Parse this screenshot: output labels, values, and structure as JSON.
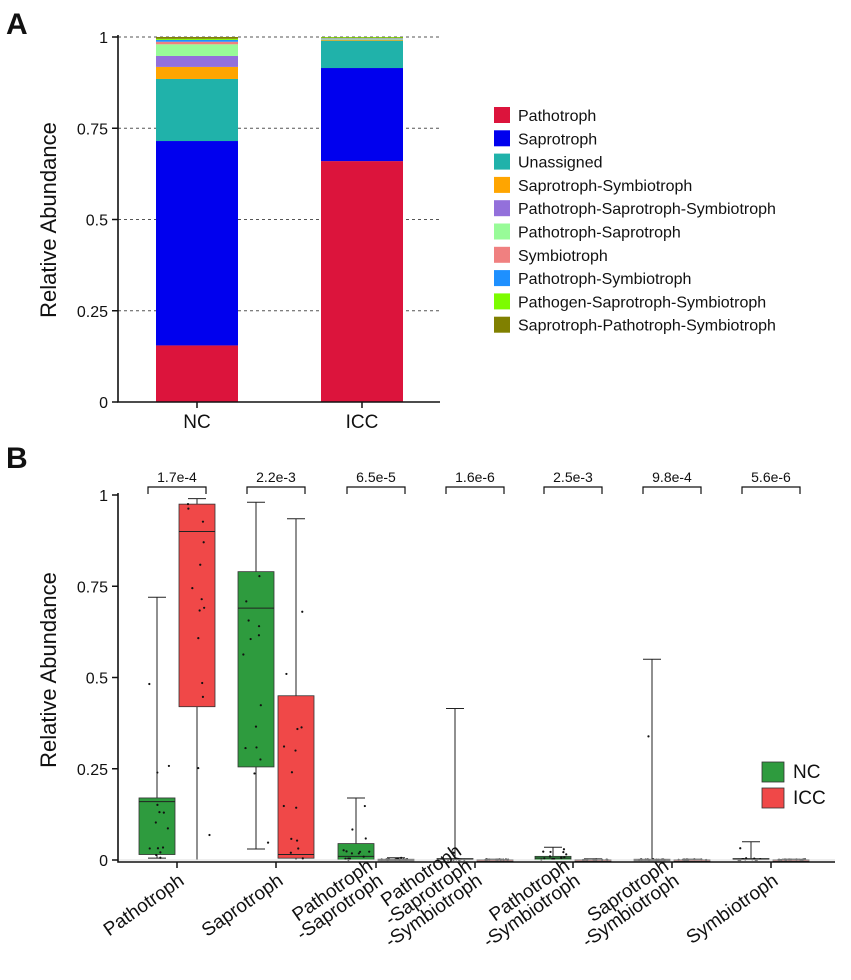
{
  "panels": {
    "a": "A",
    "b": "B"
  },
  "colors": {
    "Pathotroph": "#dc143c",
    "Saprotroph": "#0000ee",
    "Unassigned": "#20b2aa",
    "Saprotroph-Symbiotroph": "#ffa500",
    "Pathotroph-Saprotroph-Symbiotroph": "#9370db",
    "Pathotroph-Saprotroph": "#98fb98",
    "Symbiotroph": "#f08080",
    "Pathotroph-Symbiotroph": "#1e90ff",
    "Pathogen-Saprotroph-Symbiotroph": "#7cfc00",
    "Saprotroph-Pathotroph-Symbiotroph": "#808000",
    "NC": "#2e9b3e",
    "ICC": "#f04848"
  },
  "chart_data": [
    {
      "type": "bar",
      "stacked": true,
      "ylabel": "Relative Abundance",
      "ylim": [
        0,
        1
      ],
      "yticks": [
        "0",
        "0.25",
        "0.5",
        "0.75",
        "1"
      ],
      "grid": true,
      "legend_position": "right",
      "categories": [
        "NC",
        "ICC"
      ],
      "series": [
        {
          "name": "Pathotroph",
          "values": [
            0.155,
            0.66
          ]
        },
        {
          "name": "Saprotroph",
          "values": [
            0.56,
            0.255
          ]
        },
        {
          "name": "Unassigned",
          "values": [
            0.17,
            0.075
          ]
        },
        {
          "name": "Saprotroph-Symbiotroph",
          "values": [
            0.033,
            0.002
          ]
        },
        {
          "name": "Pathotroph-Saprotroph-Symbiotroph",
          "values": [
            0.03,
            0.001
          ]
        },
        {
          "name": "Pathotroph-Saprotroph",
          "values": [
            0.032,
            0.002
          ]
        },
        {
          "name": "Symbiotroph",
          "values": [
            0.007,
            0.001
          ]
        },
        {
          "name": "Pathotroph-Symbiotroph",
          "values": [
            0.005,
            0.001
          ]
        },
        {
          "name": "Pathogen-Saprotroph-Symbiotroph",
          "values": [
            0.003,
            0.002
          ]
        },
        {
          "name": "Saprotroph-Pathotroph-Symbiotroph",
          "values": [
            0.005,
            0.001
          ]
        }
      ]
    },
    {
      "type": "box",
      "ylabel": "Relative Abundance",
      "ylim": [
        0,
        1
      ],
      "yticks": [
        "0",
        "0.25",
        "0.5",
        "0.75",
        "1"
      ],
      "legend_position": "right",
      "legend": [
        "NC",
        "ICC"
      ],
      "categories": [
        "Pathotroph",
        "Saprotroph",
        "Pathotroph\n-Saprotroph",
        "Pathotroph\n-Saprotroph\n-Symbiotroph",
        "Pathotroph\n-Symbiotroph",
        "Saprotroph\n-Symbiotroph",
        "Symbiotroph"
      ],
      "pvalues": [
        "1.7e-4",
        "2.2e-3",
        "6.5e-5",
        "1.6e-6",
        "2.5e-3",
        "9.8e-4",
        "5.6e-6"
      ],
      "boxes": [
        {
          "NC": {
            "min": 0.005,
            "q1": 0.015,
            "median": 0.16,
            "q3": 0.17,
            "max": 0.72
          },
          "ICC": {
            "min": 0.0,
            "q1": 0.42,
            "median": 0.9,
            "q3": 0.975,
            "max": 0.99
          }
        },
        {
          "NC": {
            "min": 0.03,
            "q1": 0.255,
            "median": 0.69,
            "q3": 0.79,
            "max": 0.98
          },
          "ICC": {
            "min": 0.0,
            "q1": 0.005,
            "median": 0.015,
            "q3": 0.45,
            "max": 0.935
          }
        },
        {
          "NC": {
            "min": 0.0,
            "q1": 0.0,
            "median": 0.01,
            "q3": 0.045,
            "max": 0.17
          },
          "ICC": {
            "min": 0.0,
            "q1": 0.0,
            "median": 0.0,
            "q3": 0.002,
            "max": 0.006
          }
        },
        {
          "NC": {
            "min": 0.0,
            "q1": 0.0,
            "median": 0.002,
            "q3": 0.004,
            "max": 0.415
          },
          "ICC": {
            "min": 0.0,
            "q1": 0.0,
            "median": 0.0,
            "q3": 0.001,
            "max": 0.002
          }
        },
        {
          "NC": {
            "min": 0.0,
            "q1": 0.0,
            "median": 0.005,
            "q3": 0.01,
            "max": 0.035
          },
          "ICC": {
            "min": 0.0,
            "q1": 0.0,
            "median": 0.0,
            "q3": 0.001,
            "max": 0.003
          }
        },
        {
          "NC": {
            "min": 0.0,
            "q1": 0.0,
            "median": 0.0,
            "q3": 0.002,
            "max": 0.55
          },
          "ICC": {
            "min": 0.0,
            "q1": 0.0,
            "median": 0.0,
            "q3": 0.001,
            "max": 0.002
          }
        },
        {
          "NC": {
            "min": 0.0,
            "q1": 0.0,
            "median": 0.002,
            "q3": 0.004,
            "max": 0.05
          },
          "ICC": {
            "min": 0.0,
            "q1": 0.0,
            "median": 0.0,
            "q3": 0.001,
            "max": 0.002
          }
        }
      ]
    }
  ]
}
